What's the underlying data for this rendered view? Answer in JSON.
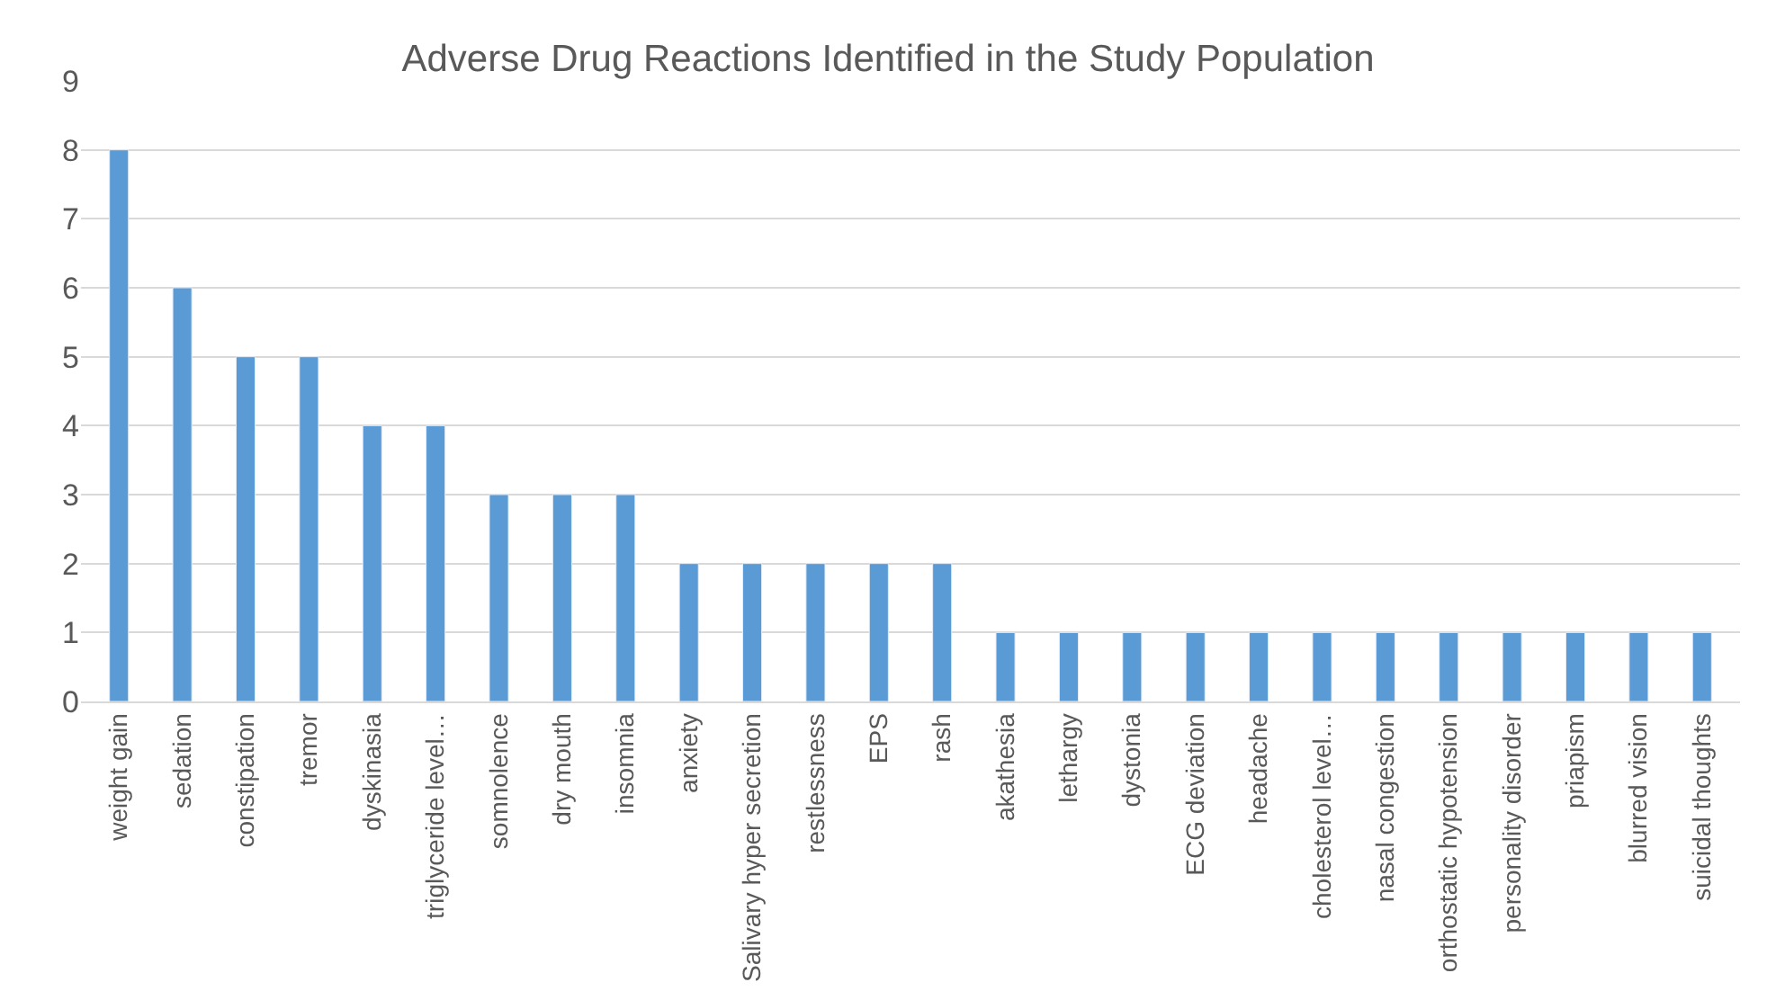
{
  "chart_data": {
    "type": "bar",
    "title": "Adverse Drug Reactions Identified in the Study Population",
    "categories": [
      "weight gain",
      "sedation",
      "constipation",
      "tremor",
      "dyskinasia",
      "triglyceride level…",
      "somnolence",
      "dry mouth",
      "insomnia",
      "anxiety",
      "Salivary hyper secretion",
      "restlessness",
      "EPS",
      "rash",
      "akathesia",
      "lethargy",
      "dystonia",
      "ECG deviation",
      "headache",
      "cholesterol level…",
      "nasal congestion",
      "orthostatic hypotension",
      "personality disorder",
      "priapism",
      "blurred vision",
      "suicidal thoughts"
    ],
    "values": [
      8,
      6,
      5,
      5,
      4,
      4,
      3,
      3,
      3,
      2,
      2,
      2,
      2,
      2,
      1,
      1,
      1,
      1,
      1,
      1,
      1,
      1,
      1,
      1,
      1,
      1
    ],
    "color": "#5b9bd5",
    "ylim": [
      0,
      9
    ],
    "yticks": [
      0,
      1,
      2,
      3,
      4,
      5,
      6,
      7,
      8,
      9
    ],
    "grid": "y"
  }
}
